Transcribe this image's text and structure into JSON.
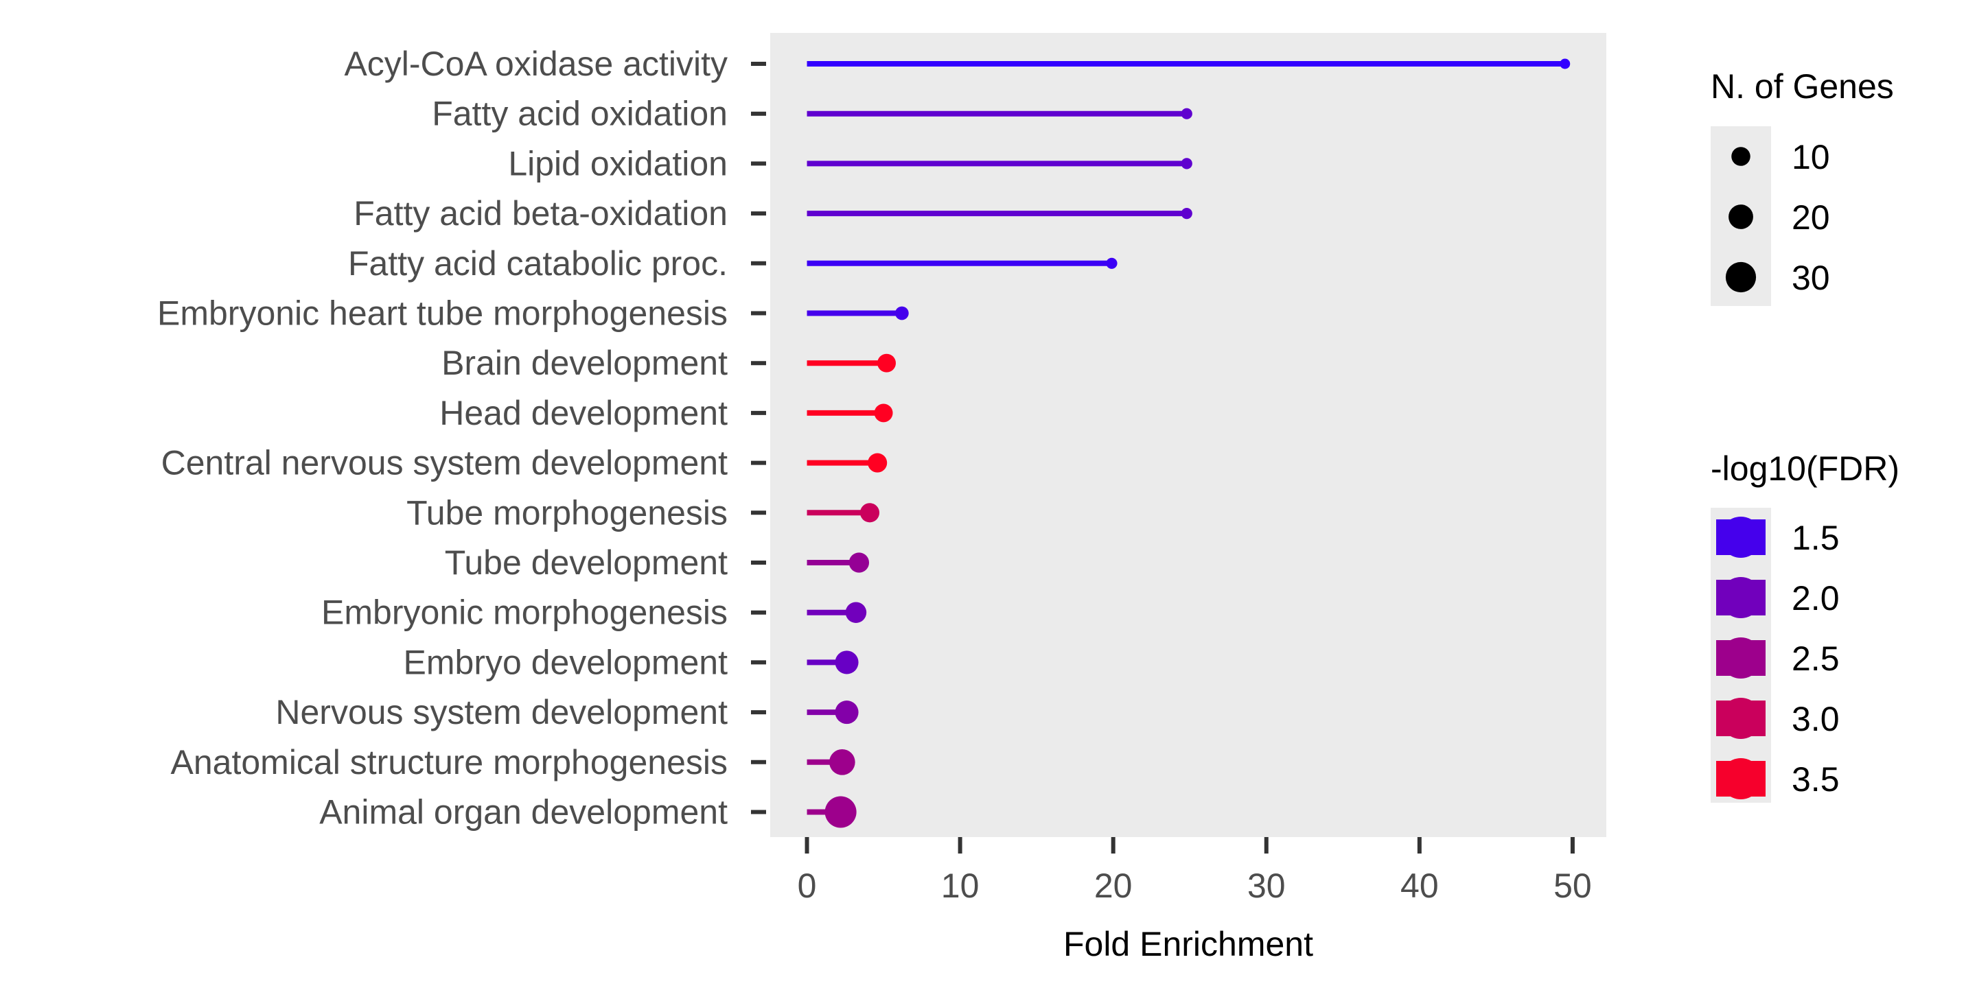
{
  "chart_data": {
    "type": "lollipop",
    "title": "",
    "xlabel": "Fold Enrichment",
    "ylabel": "",
    "xlim": [
      -2.4,
      52.2
    ],
    "xticks": [
      0,
      10,
      20,
      30,
      40,
      50
    ],
    "xtick_labels": [
      "0",
      "10",
      "20",
      "30",
      "40",
      "50"
    ],
    "grid": false,
    "panel_background": "#ebebeb",
    "categories": [
      "Acyl-CoA oxidase activity",
      "Fatty acid oxidation",
      "Lipid oxidation",
      "Fatty acid beta-oxidation",
      "Fatty acid catabolic proc.",
      "Embryonic heart tube morphogenesis",
      "Brain development",
      "Head development",
      "Central nervous system development",
      "Tube morphogenesis",
      "Tube development",
      "Embryonic morphogenesis",
      "Embryo development",
      "Nervous system development",
      "Anatomical structure morphogenesis",
      "Animal organ development"
    ],
    "fold_enrichment": [
      49.5,
      24.8,
      24.8,
      24.8,
      19.9,
      6.2,
      5.2,
      5.0,
      4.6,
      4.1,
      3.4,
      3.2,
      2.6,
      2.6,
      2.3,
      2.2
    ],
    "n_genes": [
      4,
      5,
      5,
      5,
      5,
      8,
      14,
      14,
      15,
      15,
      16,
      17,
      20,
      20,
      23,
      30
    ],
    "neg_log10_fdr": [
      1.3,
      1.8,
      1.8,
      1.8,
      1.4,
      1.5,
      3.6,
      3.6,
      3.6,
      3.0,
      2.4,
      2.0,
      1.9,
      2.2,
      2.5,
      2.5
    ],
    "legend_size": {
      "title": "N. of Genes",
      "values": [
        10,
        20,
        30
      ],
      "labels": [
        "10",
        "20",
        "30"
      ]
    },
    "legend_color": {
      "title": "-log10(FDR)",
      "values": [
        1.5,
        2.0,
        2.5,
        3.0,
        3.5
      ],
      "labels": [
        "1.5",
        "2.0",
        "2.5",
        "3.0",
        "3.5"
      ],
      "low_color": "#3300ff",
      "high_color": "#ff0022",
      "domain": [
        1.3,
        3.6
      ]
    },
    "legend_placement": "right"
  }
}
